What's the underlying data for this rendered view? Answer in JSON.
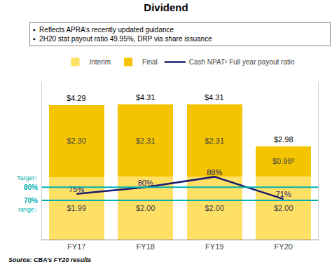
{
  "chart_data": {
    "type": "bar",
    "title": "Dividend",
    "stacked": true,
    "data_labels": true,
    "grid": false,
    "legend": "top",
    "tick_labels": "x",
    "categories": [
      "FY17",
      "FY18",
      "FY19",
      "FY20"
    ],
    "series": [
      {
        "name": "Interim",
        "color": "#FFE066",
        "values": [
          1.99,
          2.0,
          2.0,
          2.0
        ],
        "value_labels": [
          "$1.99",
          "$2.00",
          "$2.00",
          "$2.00"
        ]
      },
      {
        "name": "Final",
        "color": "#F5C400",
        "values": [
          2.3,
          2.31,
          2.31,
          0.98
        ],
        "value_labels": [
          "$2.30",
          "$2.31",
          "$2.31",
          "$0.98²"
        ]
      },
      {
        "name": "Cash NPAT¹ Full year payout ratio",
        "type": "line",
        "axis": "y2",
        "color": "#1a1a6e",
        "values": [
          75,
          80,
          88,
          71
        ],
        "value_labels": [
          "75%",
          "80%",
          "88%",
          "71%"
        ]
      }
    ],
    "totals": {
      "values": [
        4.29,
        4.31,
        4.31,
        2.98
      ],
      "value_labels": [
        "$4.29",
        "$4.31",
        "$4.31",
        "$2.98"
      ]
    },
    "ylim": [
      0,
      5
    ],
    "y2lim": [
      40,
      160
    ],
    "target_lines": [
      {
        "value": 80,
        "label": "80%",
        "color": "#00B0B0"
      },
      {
        "value": 70,
        "label": "70%",
        "color": "#00B0B0"
      }
    ],
    "target_labels": [
      "Target↑",
      "range↓"
    ],
    "bullet_points": [
      "▪  Reflects APRA’s recently updated guidance",
      "▪  2H20 stat payout ratio 49.95%, DRP via share issuance"
    ],
    "source": "Source: CBA’s FY20 results"
  }
}
